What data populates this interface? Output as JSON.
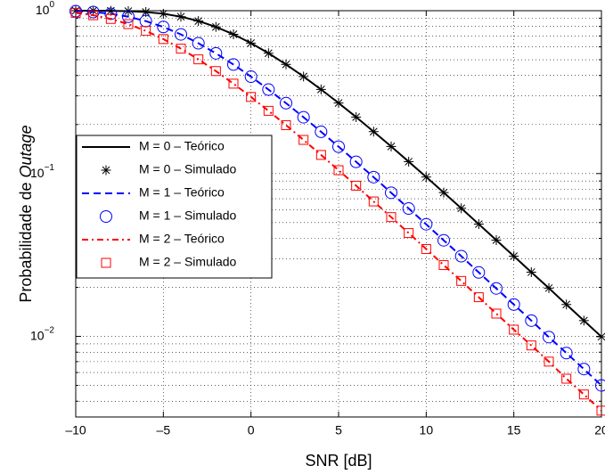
{
  "chart_data": {
    "type": "line",
    "xlabel": "SNR [dB]",
    "ylabel": {
      "text": "Probabilidade de",
      "emphasis": "Outage"
    },
    "x": [
      -10,
      -9,
      -8,
      -7,
      -6,
      -5,
      -4,
      -3,
      -2,
      -1,
      0,
      1,
      2,
      3,
      4,
      5,
      6,
      7,
      8,
      9,
      10,
      11,
      12,
      13,
      14,
      15,
      16,
      17,
      18,
      19,
      20
    ],
    "xlim": [
      -10,
      20
    ],
    "xticks": [
      {
        "value": -10,
        "label": "–10"
      },
      {
        "value": -5,
        "label": "–5"
      },
      0,
      5,
      10,
      15,
      20
    ],
    "ylim": [
      0.0032,
      1
    ],
    "yscale": "log",
    "yticks": [
      {
        "value": 0.01,
        "label": "10",
        "exponent": "−2"
      },
      {
        "value": 0.1,
        "label": "10",
        "exponent": "−1"
      },
      {
        "value": 1,
        "label": "10",
        "exponent": "0"
      }
    ],
    "yminorticks": [
      0.004,
      0.005,
      0.006,
      0.007,
      0.008,
      0.009,
      0.02,
      0.03,
      0.04,
      0.05,
      0.06,
      0.07,
      0.08,
      0.09,
      0.2,
      0.3,
      0.4,
      0.5,
      0.6,
      0.7,
      0.8,
      0.9
    ],
    "grid": true,
    "series": [
      {
        "name": "M = 0 – Teórico",
        "color": "#000000",
        "style": "solid",
        "values": [
          1.0,
          0.9996,
          0.9982,
          0.9933,
          0.9813,
          0.9577,
          0.9189,
          0.864,
          0.795,
          0.7161,
          0.6321,
          0.5481,
          0.4679,
          0.3942,
          0.3284,
          0.2711,
          0.2222,
          0.1809,
          0.1466,
          0.1183,
          0.0952,
          0.0764,
          0.0612,
          0.0489,
          0.039,
          0.0311,
          0.0248,
          0.0198,
          0.0157,
          0.0125,
          0.00995
        ]
      },
      {
        "name": "M = 0 – Simulado",
        "color": "#000000",
        "marker": "asterisk",
        "values": [
          1.0,
          0.9996,
          0.9982,
          0.9933,
          0.9813,
          0.9577,
          0.9189,
          0.864,
          0.795,
          0.7161,
          0.6321,
          0.5481,
          0.4679,
          0.3942,
          0.3284,
          0.2711,
          0.2222,
          0.1809,
          0.1466,
          0.1183,
          0.0952,
          0.0764,
          0.0612,
          0.0489,
          0.039,
          0.0311,
          0.0248,
          0.0198,
          0.0157,
          0.0125,
          0.00995
        ]
      },
      {
        "name": "M = 1 – Teórico",
        "color": "#0000ff",
        "style": "dashed",
        "values": [
          0.9933,
          0.9812,
          0.9574,
          0.9184,
          0.8634,
          0.7942,
          0.7152,
          0.6312,
          0.5473,
          0.4671,
          0.3935,
          0.3278,
          0.2706,
          0.2217,
          0.1805,
          0.1462,
          0.118,
          0.095,
          0.0762,
          0.061,
          0.0488,
          0.0389,
          0.0311,
          0.0247,
          0.0197,
          0.0157,
          0.0125,
          0.0099,
          0.0079,
          0.0063,
          0.005
        ]
      },
      {
        "name": "M = 1 – Simulado",
        "color": "#0000ff",
        "marker": "circle",
        "values": [
          0.9933,
          0.9812,
          0.9574,
          0.9184,
          0.8634,
          0.7942,
          0.7152,
          0.6312,
          0.5473,
          0.4671,
          0.3935,
          0.3278,
          0.2706,
          0.2217,
          0.1805,
          0.1462,
          0.118,
          0.095,
          0.0762,
          0.061,
          0.0488,
          0.0389,
          0.0311,
          0.0247,
          0.0197,
          0.0157,
          0.0125,
          0.0099,
          0.0079,
          0.0063,
          0.005
        ]
      },
      {
        "name": "M = 2 – Teórico",
        "color": "#ff0000",
        "style": "dashdot",
        "values": [
          0.9698,
          0.938,
          0.8901,
          0.8269,
          0.7517,
          0.6694,
          0.5848,
          0.5025,
          0.4258,
          0.3564,
          0.2953,
          0.2427,
          0.1982,
          0.1609,
          0.1301,
          0.1048,
          0.0842,
          0.0674,
          0.054,
          0.0431,
          0.0344,
          0.0274,
          0.0219,
          0.0174,
          0.0138,
          0.011,
          0.0088,
          0.007,
          0.0055,
          0.0044,
          0.0035
        ]
      },
      {
        "name": "M = 2 – Simulado",
        "color": "#ff0000",
        "marker": "square",
        "values": [
          0.9698,
          0.938,
          0.8901,
          0.8269,
          0.7517,
          0.6694,
          0.5848,
          0.5025,
          0.4258,
          0.3564,
          0.2953,
          0.2427,
          0.1982,
          0.1609,
          0.1301,
          0.1048,
          0.0842,
          0.0674,
          0.054,
          0.0431,
          0.0344,
          0.0274,
          0.0219,
          0.0174,
          0.0138,
          0.011,
          0.0088,
          0.007,
          0.0055,
          0.0044,
          0.0035
        ]
      }
    ]
  }
}
